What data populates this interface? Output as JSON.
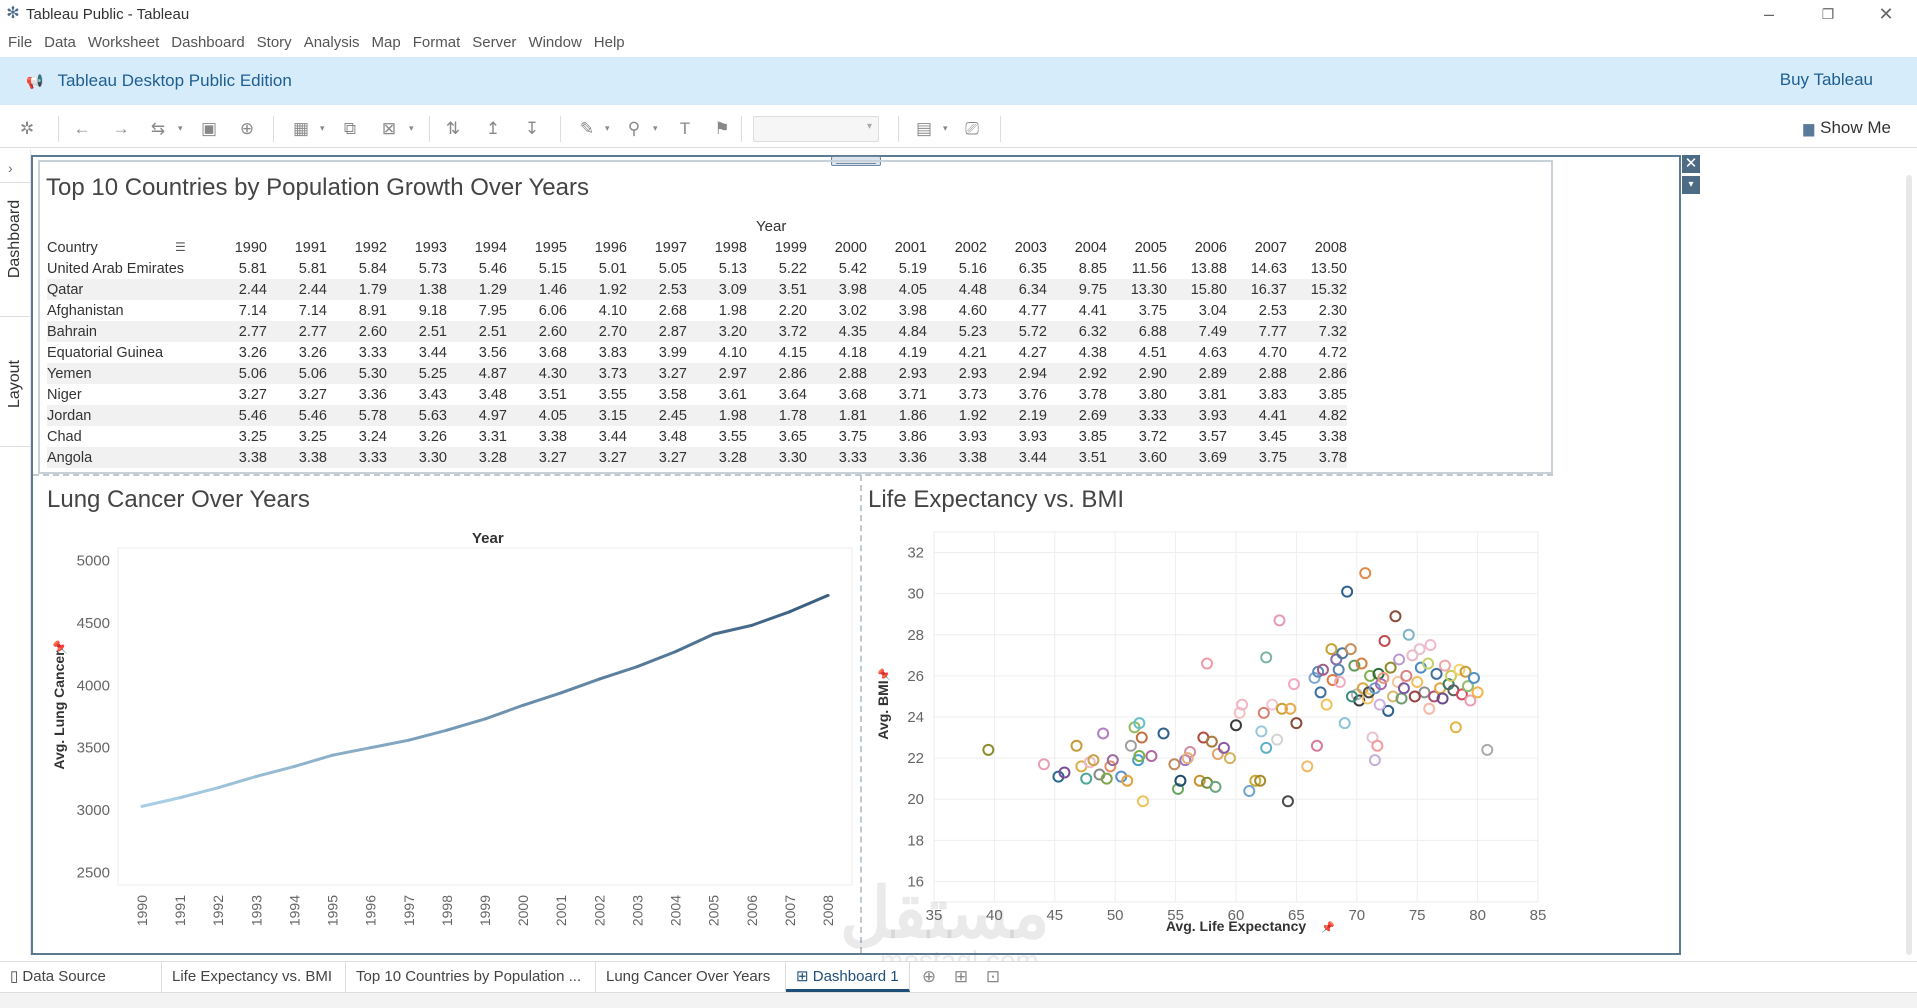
{
  "window": {
    "title": "Tableau Public - Tableau"
  },
  "menu": [
    "File",
    "Data",
    "Worksheet",
    "Dashboard",
    "Story",
    "Analysis",
    "Map",
    "Format",
    "Server",
    "Window",
    "Help"
  ],
  "banner": {
    "edition": "Tableau Desktop Public Edition",
    "buy": "Buy Tableau"
  },
  "toolbar": {
    "show_me": "Show Me"
  },
  "side_tabs": {
    "dashboard": "Dashboard",
    "layout": "Layout"
  },
  "table_view": {
    "title": "Top 10 Countries by Population Growth Over Years",
    "column_group": "Year",
    "row_header": "Country",
    "years": [
      "1990",
      "1991",
      "1992",
      "1993",
      "1994",
      "1995",
      "1996",
      "1997",
      "1998",
      "1999",
      "2000",
      "2001",
      "2002",
      "2003",
      "2004",
      "2005",
      "2006",
      "2007",
      "2008"
    ],
    "rows": [
      {
        "country": "United Arab Emirates",
        "values": [
          "5.81",
          "5.81",
          "5.84",
          "5.73",
          "5.46",
          "5.15",
          "5.01",
          "5.05",
          "5.13",
          "5.22",
          "5.42",
          "5.19",
          "5.16",
          "6.35",
          "8.85",
          "11.56",
          "13.88",
          "14.63",
          "13.50"
        ]
      },
      {
        "country": "Qatar",
        "values": [
          "2.44",
          "2.44",
          "1.79",
          "1.38",
          "1.29",
          "1.46",
          "1.92",
          "2.53",
          "3.09",
          "3.51",
          "3.98",
          "4.05",
          "4.48",
          "6.34",
          "9.75",
          "13.30",
          "15.80",
          "16.37",
          "15.32"
        ]
      },
      {
        "country": "Afghanistan",
        "values": [
          "7.14",
          "7.14",
          "8.91",
          "9.18",
          "7.95",
          "6.06",
          "4.10",
          "2.68",
          "1.98",
          "2.20",
          "3.02",
          "3.98",
          "4.60",
          "4.77",
          "4.41",
          "3.75",
          "3.04",
          "2.53",
          "2.30"
        ]
      },
      {
        "country": "Bahrain",
        "values": [
          "2.77",
          "2.77",
          "2.60",
          "2.51",
          "2.51",
          "2.60",
          "2.70",
          "2.87",
          "3.20",
          "3.72",
          "4.35",
          "4.84",
          "5.23",
          "5.72",
          "6.32",
          "6.88",
          "7.49",
          "7.77",
          "7.32"
        ]
      },
      {
        "country": "Equatorial Guinea",
        "values": [
          "3.26",
          "3.26",
          "3.33",
          "3.44",
          "3.56",
          "3.68",
          "3.83",
          "3.99",
          "4.10",
          "4.15",
          "4.18",
          "4.19",
          "4.21",
          "4.27",
          "4.38",
          "4.51",
          "4.63",
          "4.70",
          "4.72"
        ]
      },
      {
        "country": "Yemen",
        "values": [
          "5.06",
          "5.06",
          "5.30",
          "5.25",
          "4.87",
          "4.30",
          "3.73",
          "3.27",
          "2.97",
          "2.86",
          "2.88",
          "2.93",
          "2.93",
          "2.94",
          "2.92",
          "2.90",
          "2.89",
          "2.88",
          "2.86"
        ]
      },
      {
        "country": "Niger",
        "values": [
          "3.27",
          "3.27",
          "3.36",
          "3.43",
          "3.48",
          "3.51",
          "3.55",
          "3.58",
          "3.61",
          "3.64",
          "3.68",
          "3.71",
          "3.73",
          "3.76",
          "3.78",
          "3.80",
          "3.81",
          "3.83",
          "3.85"
        ]
      },
      {
        "country": "Jordan",
        "values": [
          "5.46",
          "5.46",
          "5.78",
          "5.63",
          "4.97",
          "4.05",
          "3.15",
          "2.45",
          "1.98",
          "1.78",
          "1.81",
          "1.86",
          "1.92",
          "2.19",
          "2.69",
          "3.33",
          "3.93",
          "4.41",
          "4.82"
        ]
      },
      {
        "country": "Chad",
        "values": [
          "3.25",
          "3.25",
          "3.24",
          "3.26",
          "3.31",
          "3.38",
          "3.44",
          "3.48",
          "3.55",
          "3.65",
          "3.75",
          "3.86",
          "3.93",
          "3.93",
          "3.85",
          "3.72",
          "3.57",
          "3.45",
          "3.38"
        ]
      },
      {
        "country": "Angola",
        "values": [
          "3.38",
          "3.38",
          "3.33",
          "3.30",
          "3.28",
          "3.27",
          "3.27",
          "3.27",
          "3.28",
          "3.30",
          "3.33",
          "3.36",
          "3.38",
          "3.44",
          "3.51",
          "3.60",
          "3.69",
          "3.75",
          "3.78"
        ]
      }
    ]
  },
  "chart_data": [
    {
      "type": "line",
      "title": "Lung Cancer Over Years",
      "top_label": "Year",
      "ylabel": "Avg. Lung Cancer",
      "ylim": [
        2400,
        5100
      ],
      "yticks": [
        "2500",
        "3000",
        "3500",
        "4000",
        "4500",
        "5000"
      ],
      "x": [
        "1990",
        "1991",
        "1992",
        "1993",
        "1994",
        "1995",
        "1996",
        "1997",
        "1998",
        "1999",
        "2000",
        "2001",
        "2002",
        "2003",
        "2004",
        "2005",
        "2006",
        "2007",
        "2008"
      ],
      "values": [
        3030,
        3100,
        3180,
        3270,
        3350,
        3440,
        3500,
        3560,
        3640,
        3730,
        3840,
        3940,
        4050,
        4150,
        4270,
        4410,
        4480,
        4590,
        4720
      ],
      "color_start": "#a9cde4",
      "color_end": "#3b5f80"
    },
    {
      "type": "scatter",
      "title": "Life Expectancy vs. BMI",
      "xlabel": "Avg. Life Expectancy",
      "ylabel": "Avg. BMI",
      "xlim": [
        35,
        85
      ],
      "ylim": [
        15,
        33
      ],
      "xticks": [
        "35",
        "40",
        "45",
        "50",
        "55",
        "60",
        "65",
        "70",
        "75",
        "80",
        "85"
      ],
      "yticks": [
        "16",
        "18",
        "20",
        "22",
        "24",
        "26",
        "28",
        "30",
        "32"
      ],
      "grid": true,
      "points": [
        [
          39.5,
          22.4,
          "#8b8c2a"
        ],
        [
          44.1,
          21.7,
          "#e8a0b4"
        ],
        [
          45.3,
          21.1,
          "#2a6a8f"
        ],
        [
          45.8,
          21.3,
          "#7a4b9a"
        ],
        [
          46.8,
          22.6,
          "#c79a3a"
        ],
        [
          47.2,
          21.6,
          "#d9b04a"
        ],
        [
          47.6,
          21.0,
          "#4da89a"
        ],
        [
          47.9,
          21.8,
          "#f3b7c6"
        ],
        [
          48.2,
          21.9,
          "#c9a245"
        ],
        [
          48.7,
          21.2,
          "#888888"
        ],
        [
          49.0,
          23.2,
          "#b47cc7"
        ],
        [
          49.3,
          21.0,
          "#7fa64a"
        ],
        [
          49.6,
          21.6,
          "#e58f6a"
        ],
        [
          49.8,
          21.9,
          "#9c6b9c"
        ],
        [
          50.5,
          21.1,
          "#5a8fc7"
        ],
        [
          51.0,
          20.9,
          "#e6a23c"
        ],
        [
          51.3,
          22.6,
          "#a0a0a0"
        ],
        [
          51.6,
          23.5,
          "#8fbd5e"
        ],
        [
          51.9,
          21.9,
          "#4c9ad6"
        ],
        [
          52.0,
          22.1,
          "#79b34a"
        ],
        [
          52.2,
          23.0,
          "#c46d3f"
        ],
        [
          52.3,
          19.9,
          "#f0c25a"
        ],
        [
          52.0,
          23.7,
          "#67c0c8"
        ],
        [
          53.0,
          22.1,
          "#b16aa0"
        ],
        [
          54.0,
          23.2,
          "#2f5f8f"
        ],
        [
          54.9,
          21.7,
          "#bc8b5a"
        ],
        [
          55.2,
          20.5,
          "#66a85e"
        ],
        [
          55.4,
          20.9,
          "#1e4a6e"
        ],
        [
          55.8,
          21.9,
          "#9b77c4"
        ],
        [
          56.2,
          22.3,
          "#d58ca0"
        ],
        [
          56.0,
          22.0,
          "#e5b07a"
        ],
        [
          57.0,
          20.9,
          "#c9922e"
        ],
        [
          57.3,
          23.0,
          "#b04a40"
        ],
        [
          57.6,
          20.8,
          "#7b8a3a"
        ],
        [
          58.0,
          22.8,
          "#a8783c"
        ],
        [
          58.3,
          20.6,
          "#6aa67e"
        ],
        [
          58.5,
          22.2,
          "#e4a36d"
        ],
        [
          57.6,
          26.6,
          "#f09aa6"
        ],
        [
          59.0,
          22.5,
          "#8c5aa0"
        ],
        [
          59.5,
          22.0,
          "#d2b45a"
        ],
        [
          60.0,
          23.6,
          "#3c3c3c"
        ],
        [
          60.3,
          24.2,
          "#f3c1c1"
        ],
        [
          60.5,
          24.6,
          "#f4b6c4"
        ],
        [
          61.1,
          20.4,
          "#6fa5d4"
        ],
        [
          61.6,
          20.9,
          "#c9a92f"
        ],
        [
          62.0,
          20.9,
          "#a58a2e"
        ],
        [
          62.1,
          23.3,
          "#9bc7d9"
        ],
        [
          62.3,
          24.2,
          "#d97e6e"
        ],
        [
          62.5,
          22.5,
          "#5fb1c7"
        ],
        [
          62.5,
          26.9,
          "#7bb5a0"
        ],
        [
          63.0,
          24.6,
          "#f6c4d1"
        ],
        [
          63.4,
          22.9,
          "#d3d3d3"
        ],
        [
          63.6,
          28.7,
          "#e29ab8"
        ],
        [
          63.8,
          24.4,
          "#c9a233"
        ],
        [
          64.3,
          19.9,
          "#4a4a4a"
        ],
        [
          64.5,
          24.4,
          "#e7a94c"
        ],
        [
          64.8,
          25.6,
          "#f4a8c0"
        ],
        [
          65.0,
          23.7,
          "#8b4d3a"
        ],
        [
          65.9,
          21.6,
          "#f2b86a"
        ],
        [
          66.7,
          22.6,
          "#d67b9a"
        ],
        [
          66.5,
          25.9,
          "#7ea7d1"
        ],
        [
          66.8,
          26.2,
          "#5a8ab7"
        ],
        [
          67.0,
          25.2,
          "#3e6f9c"
        ],
        [
          67.2,
          26.3,
          "#a25e8a"
        ],
        [
          67.5,
          24.6,
          "#f2c25a"
        ],
        [
          67.9,
          27.3,
          "#c9a233"
        ],
        [
          68.0,
          25.8,
          "#e07b3f"
        ],
        [
          68.3,
          26.8,
          "#8b6aa5"
        ],
        [
          68.6,
          25.7,
          "#f1a9c5"
        ],
        [
          68.8,
          27.1,
          "#4c7a9c"
        ],
        [
          69.0,
          23.7,
          "#8fc4d8"
        ],
        [
          69.2,
          30.1,
          "#2d5f90"
        ],
        [
          69.5,
          27.3,
          "#c98e5a"
        ],
        [
          69.8,
          26.5,
          "#5e9c5a"
        ],
        [
          70.0,
          25.1,
          "#b7b7b7"
        ],
        [
          70.2,
          24.8,
          "#3b3b3b"
        ],
        [
          70.5,
          25.4,
          "#d8a844"
        ],
        [
          70.7,
          31.0,
          "#e08a4a"
        ],
        [
          70.9,
          24.9,
          "#f5c56b"
        ],
        [
          71.0,
          25.2,
          "#4b4b4b"
        ],
        [
          71.1,
          26.0,
          "#7fb04f"
        ],
        [
          71.3,
          23.0,
          "#e5c3d0"
        ],
        [
          71.5,
          21.9,
          "#c5b0d6"
        ],
        [
          71.7,
          22.6,
          "#f49a9a"
        ],
        [
          71.5,
          25.4,
          "#6a9fc9"
        ],
        [
          71.8,
          26.1,
          "#2f6b3a"
        ],
        [
          72.0,
          25.6,
          "#a86bb1"
        ],
        [
          72.2,
          25.9,
          "#e59a7a"
        ],
        [
          72.3,
          27.7,
          "#c04a4a"
        ],
        [
          72.6,
          24.3,
          "#2b5f8f"
        ],
        [
          72.8,
          26.4,
          "#8d8d2e"
        ],
        [
          73.0,
          25.0,
          "#d8b56c"
        ],
        [
          73.2,
          28.9,
          "#8a4b3a"
        ],
        [
          73.4,
          25.7,
          "#f2c7a1"
        ],
        [
          73.7,
          24.9,
          "#6b9f6e"
        ],
        [
          73.9,
          25.4,
          "#7c5aa2"
        ],
        [
          74.1,
          26.0,
          "#d98282"
        ],
        [
          74.3,
          28.0,
          "#7bb5c5"
        ],
        [
          74.6,
          27.0,
          "#e8b9ca"
        ],
        [
          75.0,
          25.7,
          "#f2c05a"
        ],
        [
          75.3,
          26.4,
          "#4c8cc4"
        ],
        [
          75.6,
          25.2,
          "#8e8e8e"
        ],
        [
          75.9,
          26.6,
          "#c1d26a"
        ],
        [
          76.1,
          27.5,
          "#f4b8ca"
        ],
        [
          76.4,
          25.0,
          "#b04f6f"
        ],
        [
          76.6,
          26.1,
          "#3f6e9a"
        ],
        [
          76.9,
          25.4,
          "#e7a23c"
        ],
        [
          77.1,
          24.9,
          "#6a4b8a"
        ],
        [
          77.3,
          26.5,
          "#f0a6a6"
        ],
        [
          77.6,
          25.6,
          "#2f7f6f"
        ],
        [
          77.8,
          26.0,
          "#c9c95a"
        ],
        [
          78.0,
          25.3,
          "#5f5f5f"
        ],
        [
          78.2,
          23.5,
          "#e3b34a"
        ],
        [
          78.5,
          26.3,
          "#f6d36a"
        ],
        [
          78.7,
          25.1,
          "#d9485a"
        ],
        [
          79.0,
          26.2,
          "#c79b3e"
        ],
        [
          79.2,
          25.5,
          "#8dbf6d"
        ],
        [
          79.4,
          24.8,
          "#e8a0b0"
        ],
        [
          79.7,
          25.9,
          "#4e90c4"
        ],
        [
          80.0,
          25.2,
          "#f1b54c"
        ],
        [
          80.8,
          22.4,
          "#a9a9a9"
        ],
        [
          75.2,
          27.3,
          "#e6c0cf"
        ],
        [
          73.5,
          26.8,
          "#b99ad0"
        ],
        [
          70.4,
          26.6,
          "#d47f3f"
        ],
        [
          68.5,
          26.3,
          "#5b86b0"
        ],
        [
          74.8,
          25.0,
          "#9a3f3f"
        ],
        [
          76.0,
          24.4,
          "#f7b8a6"
        ],
        [
          69.6,
          25.0,
          "#3c8d7c"
        ],
        [
          71.9,
          24.6,
          "#d0b0e0"
        ]
      ]
    }
  ],
  "tabs": [
    "Data Source",
    "Life Expectancy vs. BMI",
    "Top 10 Countries by Population ...",
    "Lung Cancer Over Years",
    "Dashboard 1"
  ],
  "watermark": {
    "arabic": "مستقل",
    "latin": "mostaql.com"
  }
}
